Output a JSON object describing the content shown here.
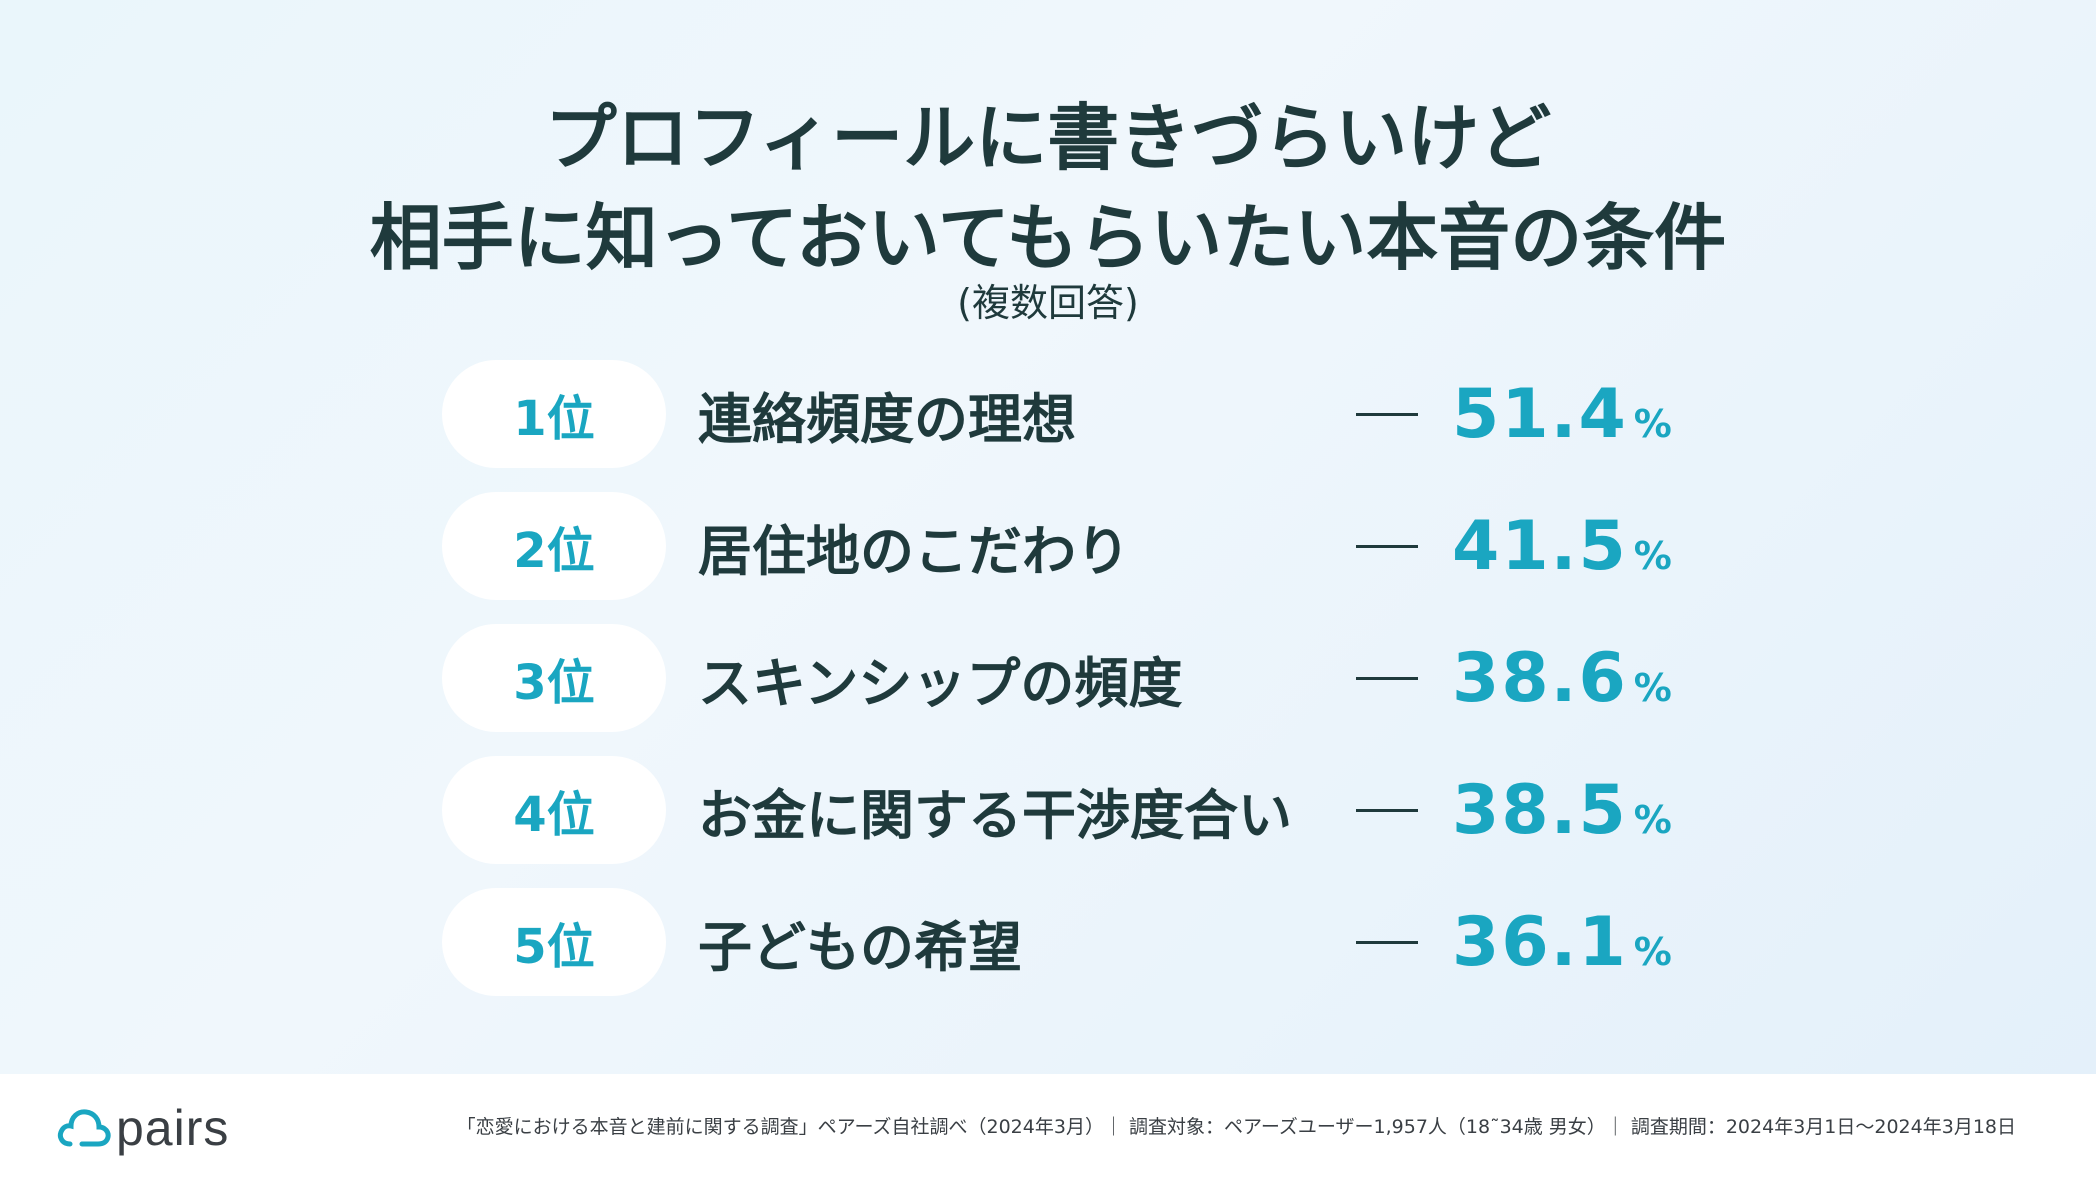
{
  "title_line1": "プロフィールに書きづらいけど",
  "title_line2": "相手に知っておいてもらいたい本音の条件",
  "subtitle": "(複数回答)",
  "rankings": [
    {
      "rank": "1位",
      "label": "連絡頻度の理想",
      "value": "51.4",
      "unit": "%"
    },
    {
      "rank": "2位",
      "label": "居住地のこだわり",
      "value": "41.5",
      "unit": "%"
    },
    {
      "rank": "3位",
      "label": "スキンシップの頻度",
      "value": "38.6",
      "unit": "%"
    },
    {
      "rank": "4位",
      "label": "お金に関する干渉度合い",
      "value": "38.5",
      "unit": "%"
    },
    {
      "rank": "5位",
      "label": "子どもの希望",
      "value": "36.1",
      "unit": "%"
    }
  ],
  "footer": {
    "logo_text": "pairs",
    "logo_icon": "cloud-icon",
    "source": "「恋愛における本音と建前に関する調査」ペアーズ自社調べ（2024年3月）｜ 調査対象：ペアーズユーザー1,957人（18˜34歳 男女）｜ 調査期間：2024年3月1日〜2024年3月18日"
  },
  "colors": {
    "accent": "#1aa6c1",
    "text": "#1f3a3c",
    "pill_bg": "#ffffff"
  }
}
